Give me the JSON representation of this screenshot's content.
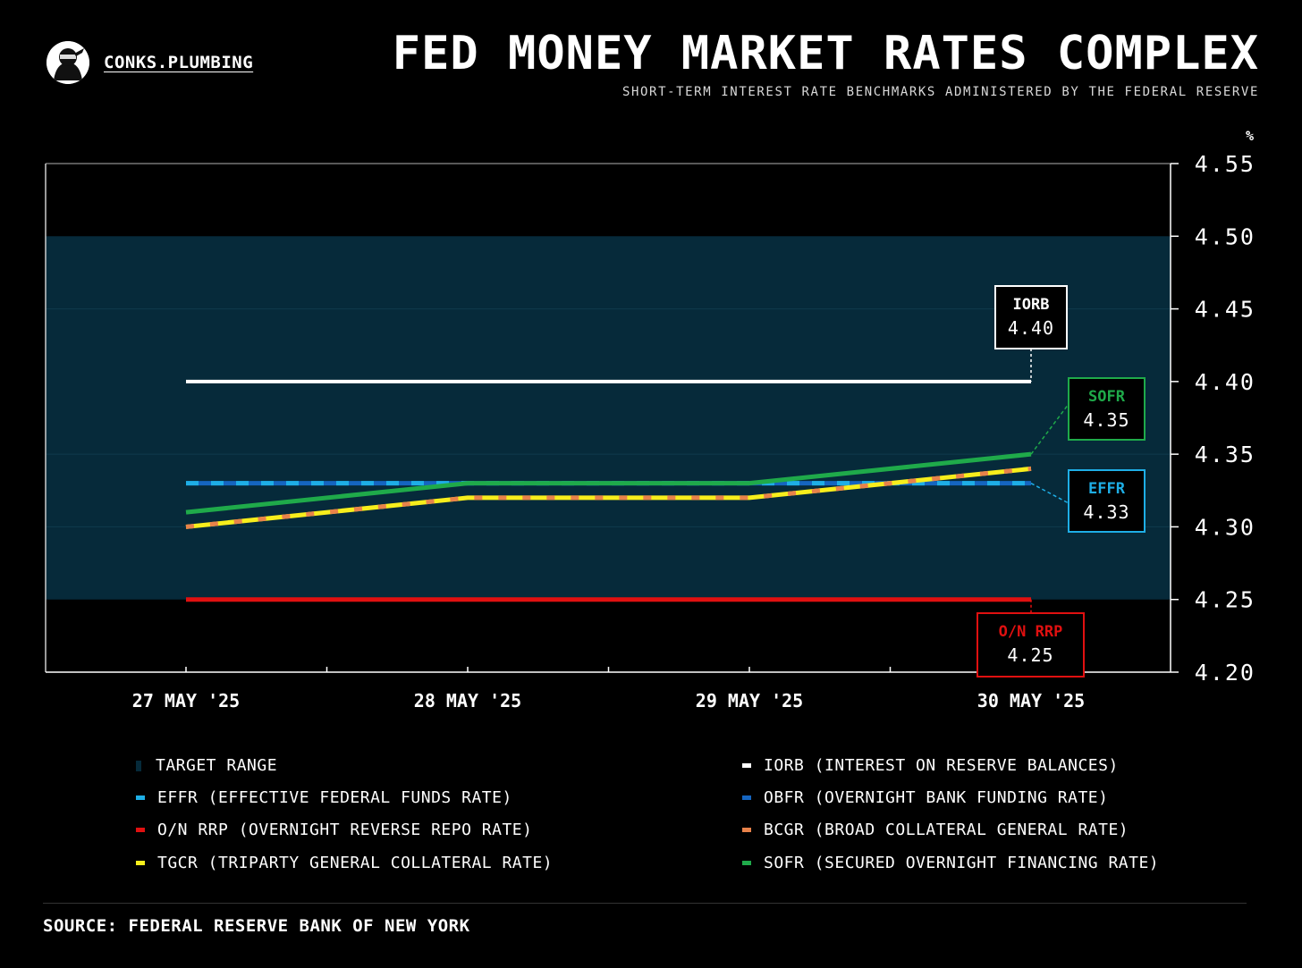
{
  "brand": {
    "name": "CONKS.PLUMBING"
  },
  "header": {
    "title": "FED MONEY MARKET RATES COMPLEX",
    "subtitle": "SHORT-TERM INTEREST RATE BENCHMARKS ADMINISTERED BY THE FEDERAL RESERVE"
  },
  "chart_data": {
    "type": "line",
    "title": "FED MONEY MARKET RATES COMPLEX",
    "subtitle": "SHORT-TERM INTEREST RATE BENCHMARKS ADMINISTERED BY THE FEDERAL RESERVE",
    "x": [
      "27 MAY '25",
      "28 MAY '25",
      "29 MAY '25",
      "30 MAY '25"
    ],
    "y_unit": "%",
    "ylim": [
      4.2,
      4.55
    ],
    "yticks": [
      "4.55",
      "4.50",
      "4.45",
      "4.40",
      "4.35",
      "4.30",
      "4.25",
      "4.20"
    ],
    "target_range": {
      "low": 4.25,
      "high": 4.5,
      "color": "#062a3a"
    },
    "series": [
      {
        "key": "iorb",
        "name": "IORB",
        "values": [
          4.4,
          4.4,
          4.4,
          4.4
        ],
        "color": "#ffffff"
      },
      {
        "key": "obfr",
        "name": "OBFR",
        "values": [
          4.33,
          4.33,
          4.33,
          4.33
        ],
        "color": "#1565c0"
      },
      {
        "key": "effr",
        "name": "EFFR",
        "values": [
          4.33,
          4.33,
          4.33,
          4.33
        ],
        "color": "#1eaee6"
      },
      {
        "key": "onrrp",
        "name": "O/N RRP",
        "values": [
          4.25,
          4.25,
          4.25,
          4.25
        ],
        "color": "#e01010"
      },
      {
        "key": "sofr",
        "name": "SOFR",
        "values": [
          4.31,
          4.33,
          4.33,
          4.35
        ],
        "color": "#1faa4a"
      },
      {
        "key": "tgcr",
        "name": "TGCR",
        "values": [
          4.3,
          4.32,
          4.32,
          4.34
        ],
        "color": "#f7ee1c"
      },
      {
        "key": "bgcr",
        "name": "BGCR",
        "values": [
          4.3,
          4.32,
          4.32,
          4.34
        ],
        "color": "#e8824a"
      }
    ],
    "callouts": [
      {
        "name": "IORB",
        "value": "4.40",
        "color": "#ffffff"
      },
      {
        "name": "SOFR",
        "value": "4.35",
        "color": "#1faa4a"
      },
      {
        "name": "EFFR",
        "value": "4.33",
        "color": "#1eaee6"
      },
      {
        "name": "O/N RRP",
        "value": "4.25",
        "color": "#e01010"
      }
    ],
    "legend": [
      {
        "label": "TARGET RANGE",
        "color": "#062a3a"
      },
      {
        "label": "IORB (INTEREST ON RESERVE BALANCES)",
        "color": "#ffffff"
      },
      {
        "label": "EFFR (EFFECTIVE FEDERAL FUNDS RATE)",
        "color": "#1eaee6"
      },
      {
        "label": "OBFR (OVERNIGHT BANK FUNDING RATE)",
        "color": "#1565c0"
      },
      {
        "label": "O/N RRP (OVERNIGHT REVERSE REPO RATE)",
        "color": "#e01010"
      },
      {
        "label": "BCGR (BROAD COLLATERAL GENERAL RATE)",
        "color": "#e8824a"
      },
      {
        "label": "TGCR (TRIPARTY GENERAL COLLATERAL RATE)",
        "color": "#f7ee1c"
      },
      {
        "label": "SOFR (SECURED OVERNIGHT FINANCING RATE)",
        "color": "#1faa4a"
      }
    ]
  },
  "footer": {
    "source": "SOURCE: FEDERAL RESERVE BANK OF NEW YORK"
  }
}
